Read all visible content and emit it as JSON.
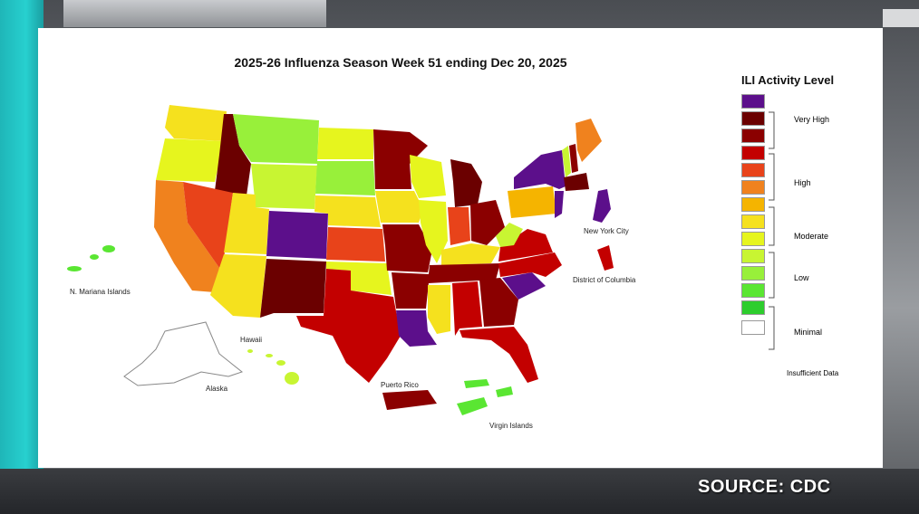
{
  "map": {
    "title": "2025-26 Influenza Season Week 51 ending Dec 20, 2025",
    "region_labels": {
      "nyc": "New York City",
      "dc": "District of Columbia",
      "mariana": "N. Mariana Islands",
      "hawaii": "Hawaii",
      "alaska": "Alaska",
      "puerto_rico": "Puerto Rico",
      "virgin_islands": "Virgin Islands"
    }
  },
  "legend": {
    "title": "ILI Activity Level",
    "levels": [
      {
        "color": "#5c0f8b"
      },
      {
        "color": "#6b0000"
      },
      {
        "color": "#8b0000"
      },
      {
        "color": "#c30000"
      },
      {
        "color": "#e8431a"
      },
      {
        "color": "#f0821e"
      },
      {
        "color": "#f5b400"
      },
      {
        "color": "#f5e11e"
      },
      {
        "color": "#e6f51e"
      },
      {
        "color": "#c8f532"
      },
      {
        "color": "#98f03a"
      },
      {
        "color": "#5ae632"
      },
      {
        "color": "#2dcd2d"
      },
      {
        "color": "#ffffff"
      }
    ],
    "groups": {
      "very_high": "Very High",
      "high": "High",
      "moderate": "Moderate",
      "low": "Low",
      "minimal": "Minimal",
      "insufficient": "Insufficient Data"
    }
  },
  "source": "SOURCE: CDC"
}
